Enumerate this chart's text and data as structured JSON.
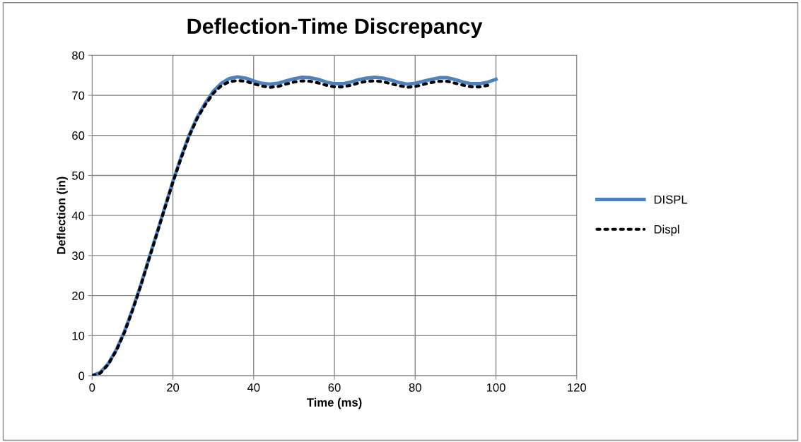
{
  "chart_data": {
    "type": "line",
    "title": "Deflection-Time Discrepancy",
    "xlabel": "Time (ms)",
    "ylabel": "Deflection (in)",
    "xlim": [
      0,
      120
    ],
    "xticks": [
      0,
      20,
      40,
      60,
      80,
      100,
      120
    ],
    "ylim": [
      0,
      80
    ],
    "yticks": [
      0,
      10,
      20,
      30,
      40,
      50,
      60,
      70,
      80
    ],
    "grid": true,
    "legend": "right",
    "series": [
      {
        "name": "DISPL",
        "color": "#4f81bd",
        "line_style": "solid",
        "x": [
          0,
          2,
          4,
          6,
          8,
          10,
          12,
          14,
          16,
          18,
          20,
          22,
          24,
          26,
          28,
          30,
          32,
          34,
          36,
          38,
          40,
          42,
          44,
          46,
          48,
          50,
          52,
          54,
          56,
          58,
          60,
          62,
          64,
          66,
          68,
          70,
          72,
          74,
          76,
          78,
          80,
          82,
          84,
          86,
          88,
          90,
          92,
          94,
          96,
          98,
          100
        ],
        "values": [
          0,
          0.8,
          3,
          6.5,
          11,
          16.5,
          22.5,
          29,
          35.5,
          42,
          48.5,
          54.5,
          60,
          64.5,
          68,
          71,
          73,
          74.2,
          74.6,
          74.3,
          73.6,
          73,
          72.8,
          73,
          73.6,
          74.1,
          74.5,
          74.4,
          74,
          73.3,
          72.9,
          72.9,
          73.3,
          73.9,
          74.3,
          74.5,
          74.3,
          73.8,
          73.2,
          72.8,
          73,
          73.5,
          74,
          74.4,
          74.4,
          73.9,
          73.3,
          72.9,
          72.9,
          73.3,
          74
        ]
      },
      {
        "name": "Displ",
        "color": "#000000",
        "line_style": "dotted",
        "x": [
          0,
          2,
          4,
          6,
          8,
          10,
          12,
          14,
          16,
          18,
          20,
          22,
          24,
          26,
          28,
          30,
          32,
          34,
          36,
          38,
          40,
          42,
          44,
          46,
          48,
          50,
          52,
          54,
          56,
          58,
          60,
          62,
          64,
          66,
          68,
          70,
          72,
          74,
          76,
          78,
          80,
          82,
          84,
          86,
          88,
          90,
          92,
          94,
          96,
          98
        ],
        "values": [
          0,
          0.6,
          2.8,
          6.3,
          10.8,
          16.3,
          22.3,
          28.8,
          35.3,
          41.8,
          48.3,
          54.2,
          59.7,
          64.2,
          67.6,
          70.5,
          72.4,
          73.4,
          73.7,
          73.5,
          72.9,
          72.3,
          72.0,
          72.2,
          72.8,
          73.3,
          73.6,
          73.5,
          73.1,
          72.5,
          72.1,
          72.1,
          72.5,
          73.1,
          73.5,
          73.6,
          73.4,
          72.9,
          72.4,
          72.0,
          72.2,
          72.7,
          73.2,
          73.5,
          73.5,
          73.0,
          72.5,
          72.1,
          72.1,
          72.5
        ]
      }
    ]
  }
}
